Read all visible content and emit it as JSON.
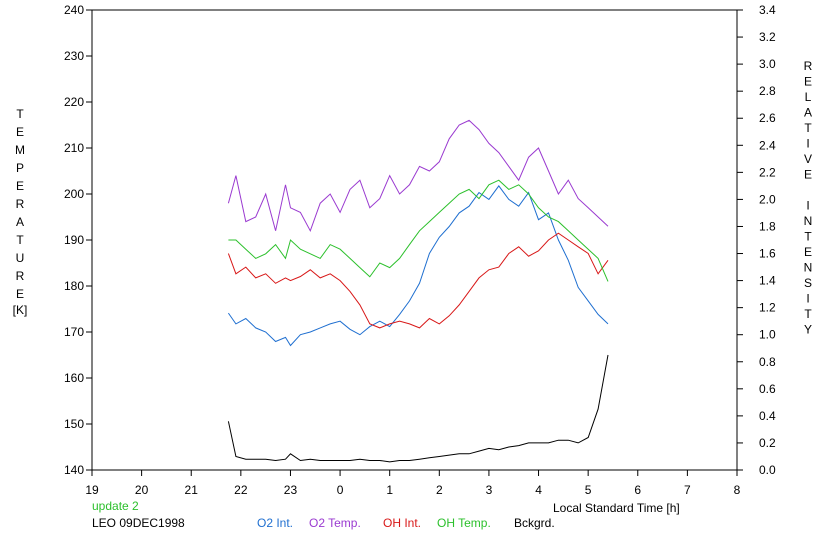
{
  "chart_data": {
    "type": "line",
    "left_axis": {
      "label": "TEMPERATURE",
      "unit": "[K]",
      "range": [
        140,
        240
      ],
      "ticks": [
        140,
        150,
        160,
        170,
        180,
        190,
        200,
        210,
        220,
        230,
        240
      ]
    },
    "right_axis": {
      "label": "RELATIVE INTENSITY",
      "range": [
        0.0,
        3.4
      ],
      "ticks": [
        "0.0",
        "0.2",
        "0.4",
        "0.6",
        "0.8",
        "1.0",
        "1.2",
        "1.4",
        "1.6",
        "1.8",
        "2.0",
        "2.2",
        "2.4",
        "2.6",
        "2.8",
        "3.0",
        "3.2",
        "3.4"
      ]
    },
    "x_axis": {
      "label": "Local Standard Time [h]",
      "range": [
        19,
        32
      ],
      "tick_labels": [
        "19",
        "20",
        "21",
        "22",
        "23",
        "0",
        "1",
        "2",
        "3",
        "4",
        "5",
        "6",
        "7",
        "8"
      ]
    },
    "update_text": "update 2",
    "station_text": "LEO 09DEC1998",
    "series": [
      {
        "name": "O2 Int.",
        "color": "#1f6fd0",
        "axis": "right",
        "x": [
          21.75,
          21.9,
          22.1,
          22.3,
          22.5,
          22.7,
          22.9,
          23.0,
          23.2,
          23.4,
          23.6,
          23.8,
          24.0,
          24.2,
          24.4,
          24.6,
          24.8,
          25.0,
          25.2,
          25.4,
          25.6,
          25.8,
          26.0,
          26.2,
          26.4,
          26.6,
          26.8,
          27.0,
          27.2,
          27.4,
          27.6,
          27.8,
          28.0,
          28.2,
          28.4,
          28.6,
          28.8,
          29.0,
          29.2,
          29.4
        ],
        "y": [
          1.16,
          1.08,
          1.12,
          1.05,
          1.02,
          0.95,
          0.98,
          0.92,
          1.0,
          1.02,
          1.05,
          1.08,
          1.1,
          1.04,
          1.0,
          1.06,
          1.1,
          1.06,
          1.15,
          1.25,
          1.38,
          1.6,
          1.72,
          1.8,
          1.9,
          1.95,
          2.05,
          2.0,
          2.1,
          2.0,
          1.95,
          2.05,
          1.85,
          1.9,
          1.7,
          1.55,
          1.35,
          1.25,
          1.15,
          1.08
        ]
      },
      {
        "name": "O2 Temp.",
        "color": "#9a3ad0",
        "axis": "left",
        "x": [
          21.75,
          21.9,
          22.1,
          22.3,
          22.5,
          22.7,
          22.9,
          23.0,
          23.2,
          23.4,
          23.6,
          23.8,
          24.0,
          24.2,
          24.4,
          24.6,
          24.8,
          25.0,
          25.2,
          25.4,
          25.6,
          25.8,
          26.0,
          26.2,
          26.4,
          26.6,
          26.8,
          27.0,
          27.2,
          27.4,
          27.6,
          27.8,
          28.0,
          28.2,
          28.4,
          28.6,
          28.8,
          29.0,
          29.2,
          29.4
        ],
        "y": [
          198,
          204,
          194,
          195,
          200,
          192,
          202,
          197,
          196,
          192,
          198,
          200,
          196,
          201,
          203,
          197,
          199,
          204,
          200,
          202,
          206,
          205,
          207,
          212,
          215,
          216,
          214,
          211,
          209,
          206,
          203,
          208,
          210,
          205,
          200,
          203,
          199,
          197,
          195,
          193
        ]
      },
      {
        "name": "OH Int.",
        "color": "#d81818",
        "axis": "right",
        "x": [
          21.75,
          21.9,
          22.1,
          22.3,
          22.5,
          22.7,
          22.9,
          23.0,
          23.2,
          23.4,
          23.6,
          23.8,
          24.0,
          24.2,
          24.4,
          24.6,
          24.8,
          25.0,
          25.2,
          25.4,
          25.6,
          25.8,
          26.0,
          26.2,
          26.4,
          26.6,
          26.8,
          27.0,
          27.2,
          27.4,
          27.6,
          27.8,
          28.0,
          28.2,
          28.4,
          28.6,
          28.8,
          29.0,
          29.2,
          29.4
        ],
        "y": [
          1.6,
          1.45,
          1.5,
          1.42,
          1.45,
          1.38,
          1.42,
          1.4,
          1.43,
          1.48,
          1.42,
          1.45,
          1.4,
          1.32,
          1.22,
          1.08,
          1.05,
          1.08,
          1.1,
          1.08,
          1.05,
          1.12,
          1.08,
          1.14,
          1.22,
          1.32,
          1.42,
          1.48,
          1.5,
          1.6,
          1.65,
          1.58,
          1.62,
          1.7,
          1.75,
          1.7,
          1.65,
          1.6,
          1.45,
          1.55
        ]
      },
      {
        "name": "OH Temp.",
        "color": "#2cc02c",
        "axis": "left",
        "x": [
          21.75,
          21.9,
          22.1,
          22.3,
          22.5,
          22.7,
          22.9,
          23.0,
          23.2,
          23.4,
          23.6,
          23.8,
          24.0,
          24.2,
          24.4,
          24.6,
          24.8,
          25.0,
          25.2,
          25.4,
          25.6,
          25.8,
          26.0,
          26.2,
          26.4,
          26.6,
          26.8,
          27.0,
          27.2,
          27.4,
          27.6,
          27.8,
          28.0,
          28.2,
          28.4,
          28.6,
          28.8,
          29.0,
          29.2,
          29.4
        ],
        "y": [
          190,
          190,
          188,
          186,
          187,
          189,
          186,
          190,
          188,
          187,
          186,
          189,
          188,
          186,
          184,
          182,
          185,
          184,
          186,
          189,
          192,
          194,
          196,
          198,
          200,
          201,
          199,
          202,
          203,
          201,
          202,
          200,
          197,
          195,
          194,
          192,
          190,
          188,
          186,
          181
        ]
      },
      {
        "name": "Bckgrd.",
        "color": "#000000",
        "axis": "right",
        "x": [
          21.75,
          21.9,
          22.1,
          22.3,
          22.5,
          22.7,
          22.9,
          23.0,
          23.2,
          23.4,
          23.6,
          23.8,
          24.0,
          24.2,
          24.4,
          24.6,
          24.8,
          25.0,
          25.2,
          25.4,
          25.6,
          25.8,
          26.0,
          26.2,
          26.4,
          26.6,
          26.8,
          27.0,
          27.2,
          27.4,
          27.6,
          27.8,
          28.0,
          28.2,
          28.4,
          28.6,
          28.8,
          29.0,
          29.2,
          29.4
        ],
        "y": [
          0.36,
          0.1,
          0.08,
          0.08,
          0.08,
          0.07,
          0.08,
          0.12,
          0.07,
          0.08,
          0.07,
          0.07,
          0.07,
          0.07,
          0.08,
          0.07,
          0.07,
          0.06,
          0.07,
          0.07,
          0.08,
          0.09,
          0.1,
          0.11,
          0.12,
          0.12,
          0.14,
          0.16,
          0.15,
          0.17,
          0.18,
          0.2,
          0.2,
          0.2,
          0.22,
          0.22,
          0.2,
          0.24,
          0.45,
          0.85
        ]
      }
    ]
  }
}
